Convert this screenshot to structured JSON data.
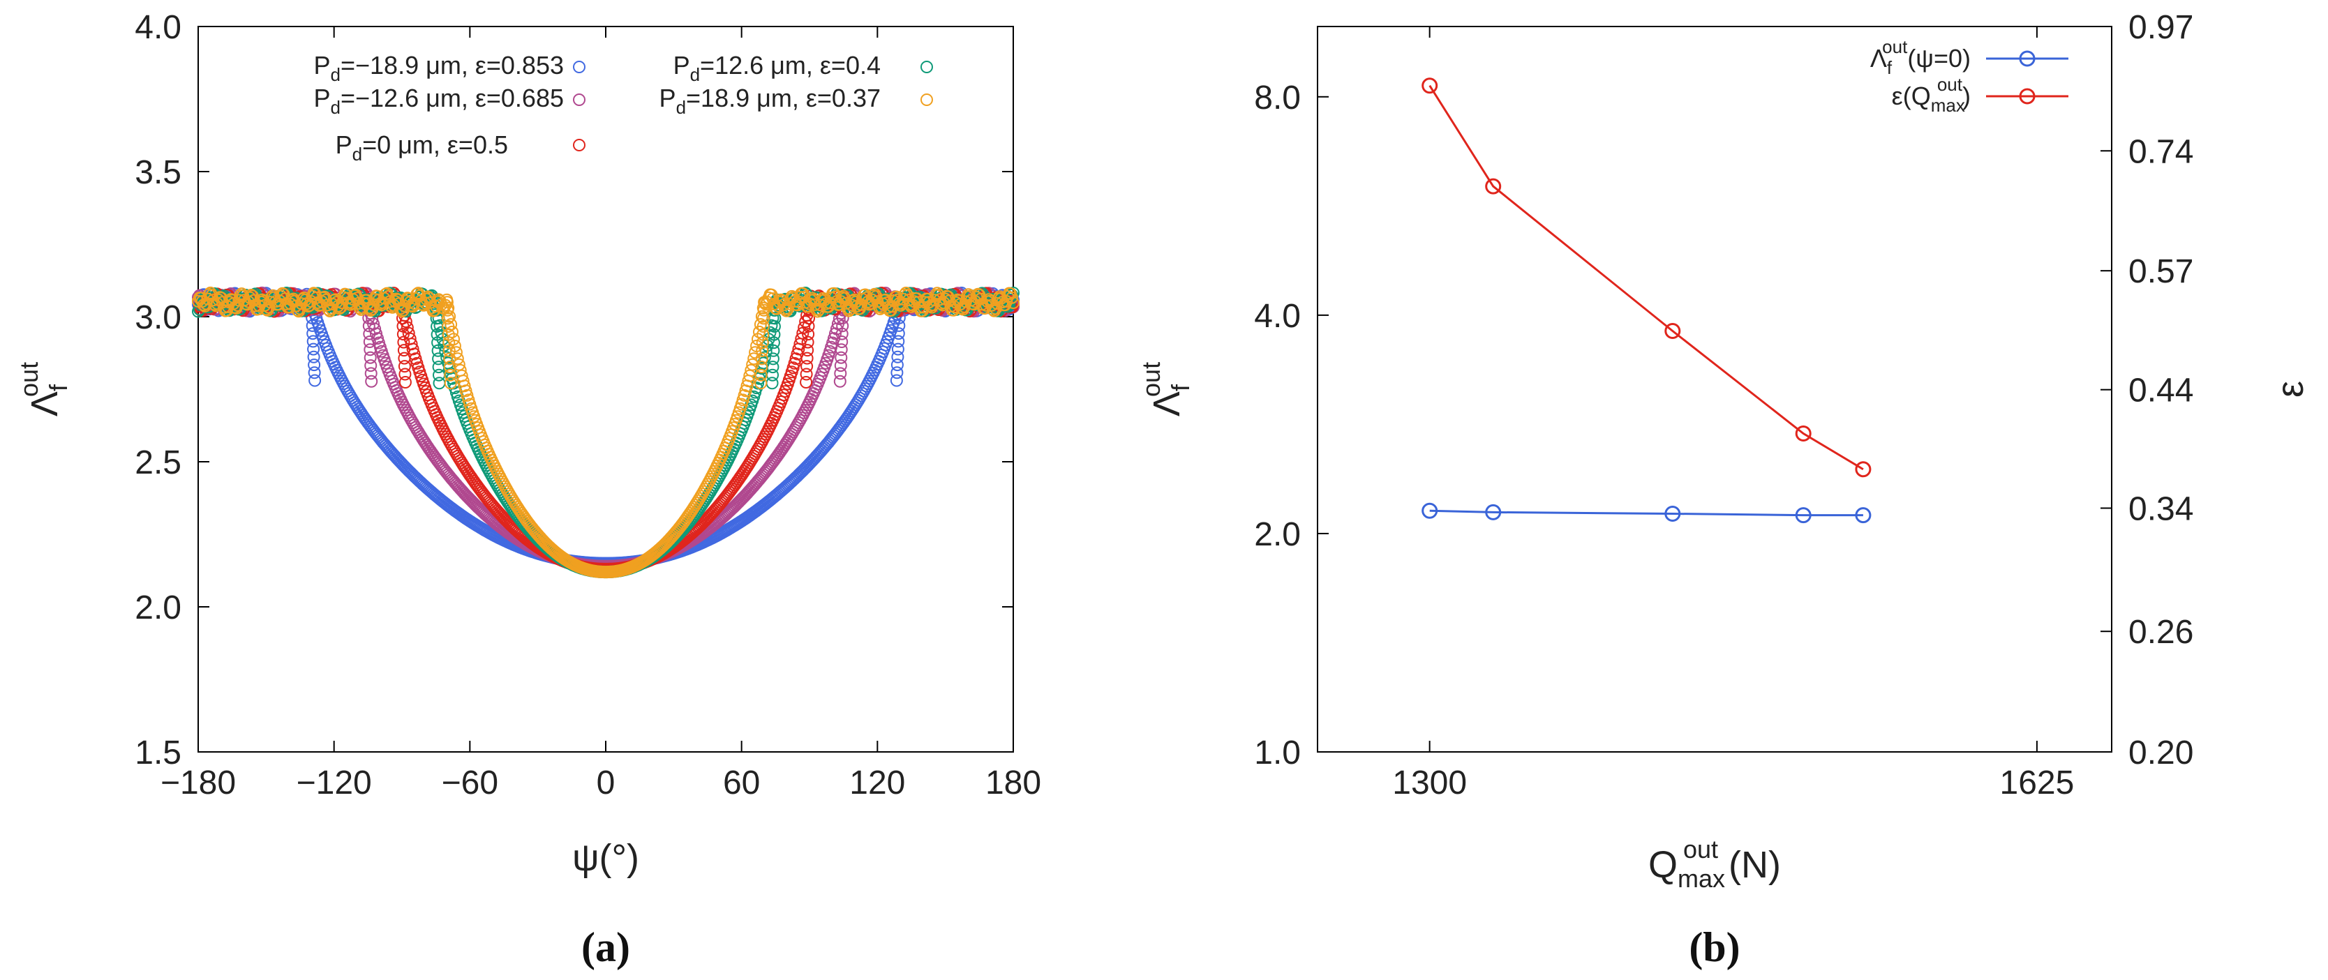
{
  "chart_data": [
    {
      "id": "a",
      "type": "scatter",
      "caption": "(a)",
      "xlabel": "ψ(°)",
      "ylabel": {
        "base": "Λ",
        "sub": "f",
        "sup": "out"
      },
      "xlim": [
        -180,
        180
      ],
      "ylim": [
        1.5,
        4.0
      ],
      "xticks": [
        -180,
        -120,
        -60,
        0,
        60,
        120,
        180
      ],
      "xtick_labels": [
        "−180",
        "−120",
        "−60",
        "0",
        "60",
        "120",
        "180"
      ],
      "yticks": [
        1.5,
        2.0,
        2.5,
        3.0,
        3.5,
        4.0
      ],
      "ytick_labels": [
        "1.5",
        "2.0",
        "2.5",
        "3.0",
        "3.5",
        "4.0"
      ],
      "series": [
        {
          "name": "Pd=−18.9 μm, ε=0.853",
          "legend": {
            "pre": "P",
            "sub": "d",
            "post": "=−18.9 μm, ε=0.853"
          },
          "color": "#4169e1",
          "plateau": 3.05,
          "min": 2.15,
          "breakpoint": 130
        },
        {
          "name": "Pd=−12.6 μm, ε=0.685",
          "legend": {
            "pre": "P",
            "sub": "d",
            "post": "=−12.6 μm, ε=0.685"
          },
          "color": "#b0488f",
          "plateau": 3.05,
          "min": 2.14,
          "breakpoint": 105
        },
        {
          "name": "Pd=0 μm, ε=0.5",
          "legend": {
            "pre": "P",
            "sub": "d",
            "post": "=0 μm, ε=0.5"
          },
          "color": "#e0251c",
          "plateau": 3.05,
          "min": 2.13,
          "breakpoint": 90
        },
        {
          "name": "Pd=12.6 μm, ε=0.4",
          "legend": {
            "pre": "P",
            "sub": "d",
            "post": "=12.6 μm, ε=0.4"
          },
          "color": "#0f9a78",
          "plateau": 3.05,
          "min": 2.12,
          "breakpoint": 75
        },
        {
          "name": "Pd=18.9 μm, ε=0.37",
          "legend": {
            "pre": "P",
            "sub": "d",
            "post": "=18.9 μm, ε=0.37"
          },
          "color": "#f0a020",
          "plateau": 3.05,
          "min": 2.12,
          "breakpoint": 70
        }
      ]
    },
    {
      "id": "b",
      "type": "line",
      "caption": "(b)",
      "xlabel": {
        "base": "Q",
        "sub": "max",
        "sup": "out",
        "post": " (N)"
      },
      "ylabel_left": {
        "base": "Λ",
        "sub": "f",
        "sup": "out"
      },
      "ylabel_right": "ε",
      "xlim": [
        1240,
        1665
      ],
      "xticks": [
        1300,
        1625
      ],
      "xtick_labels": [
        "1300",
        "1625"
      ],
      "y_left_scale": "log",
      "y_left_lim": [
        1.0,
        10.0
      ],
      "y_left_ticks": [
        1.0,
        2.0,
        4.0,
        8.0
      ],
      "y_left_tick_labels": [
        "1.0",
        "2.0",
        "4.0",
        "8.0"
      ],
      "y_right_scale": "log",
      "y_right_lim": [
        0.2,
        0.97
      ],
      "y_right_ticks": [
        0.2,
        0.26,
        0.34,
        0.44,
        0.57,
        0.74,
        0.97
      ],
      "y_right_tick_labels": [
        "0.20",
        "0.26",
        "0.34",
        "0.44",
        "0.57",
        "0.74",
        "0.97"
      ],
      "series": [
        {
          "name": "Λfout(ψ=0)",
          "axis": "left",
          "color": "#3a64d8",
          "legend": {
            "base": "Λ",
            "sub": "f",
            "sup": "out",
            "post": "(ψ=0)"
          },
          "x": [
            1300,
            1334,
            1430,
            1500,
            1532
          ],
          "y": [
            2.15,
            2.14,
            2.13,
            2.12,
            2.12
          ]
        },
        {
          "name": "ε(Qmaxout)",
          "axis": "right",
          "color": "#e0251c",
          "legend": {
            "pre": "ε(Q",
            "sub": "max",
            "sup": "out",
            "post": ")"
          },
          "x": [
            1300,
            1334,
            1430,
            1500,
            1532
          ],
          "y": [
            0.853,
            0.685,
            0.5,
            0.4,
            0.37
          ]
        }
      ]
    }
  ]
}
